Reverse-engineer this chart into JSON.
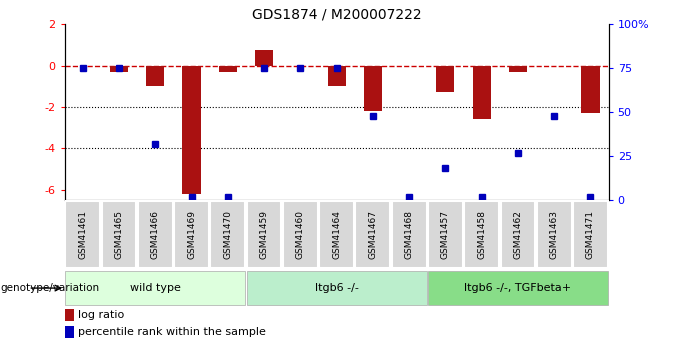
{
  "title": "GDS1874 / M200007222",
  "samples": [
    "GSM41461",
    "GSM41465",
    "GSM41466",
    "GSM41469",
    "GSM41470",
    "GSM41459",
    "GSM41460",
    "GSM41464",
    "GSM41467",
    "GSM41468",
    "GSM41457",
    "GSM41458",
    "GSM41462",
    "GSM41463",
    "GSM41471"
  ],
  "log_ratio": [
    0.0,
    -0.3,
    -1.0,
    -6.2,
    -0.3,
    0.75,
    0.0,
    -1.0,
    -2.2,
    0.0,
    -1.3,
    -2.6,
    -0.3,
    0.0,
    -2.3
  ],
  "percentile_rank": [
    75,
    75,
    32,
    2,
    2,
    75,
    75,
    75,
    48,
    2,
    18,
    2,
    27,
    48,
    2
  ],
  "groups": [
    {
      "label": "wild type",
      "start": 0,
      "end": 4,
      "color": "#ccffcc"
    },
    {
      "label": "ltgb6 -/-",
      "start": 5,
      "end": 9,
      "color": "#99ee99"
    },
    {
      "label": "ltgb6 -/-, TGFbeta+",
      "start": 10,
      "end": 14,
      "color": "#66dd66"
    }
  ],
  "ylim_left": [
    -6.5,
    2.0
  ],
  "ylim_right": [
    0,
    100
  ],
  "bar_color": "#aa1111",
  "dot_color": "#0000bb",
  "dashed_line_color": "#cc0000",
  "bg_color": "#ffffff",
  "group_colors_light": [
    "#ddffdd",
    "#bbeecc",
    "#88dd88"
  ]
}
